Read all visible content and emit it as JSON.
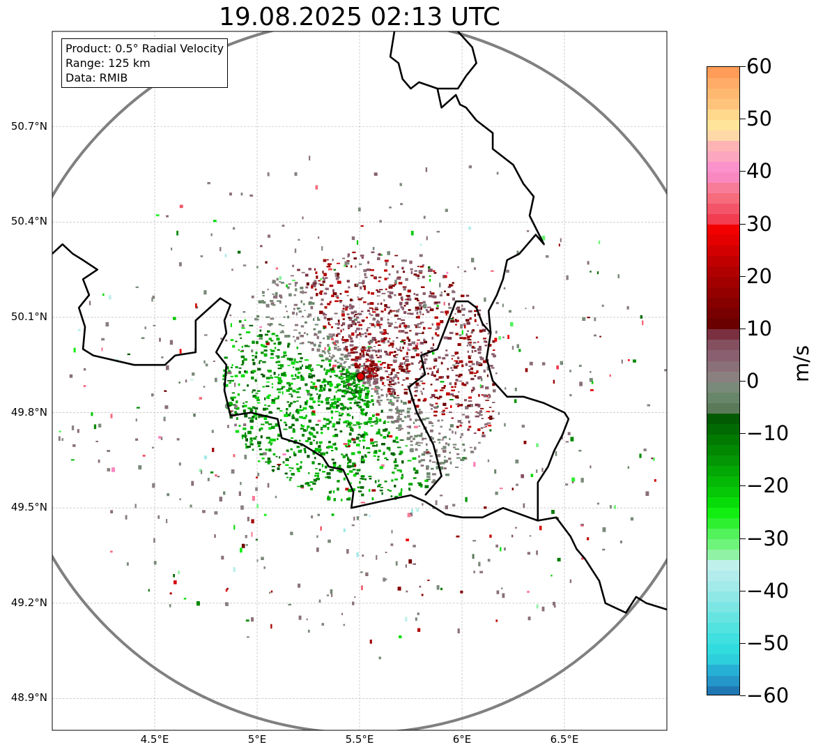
{
  "title": "19.08.2025 02:13 UTC",
  "info_box": {
    "product": "Product: 0.5° Radial Velocity",
    "range": "Range: 125 km",
    "data": "Data: RMIB"
  },
  "chart_data": {
    "type": "heatmap",
    "title": "19.08.2025 02:13 UTC",
    "xlabel": "",
    "ylabel": "",
    "x_ticks": [
      "4.5°E",
      "5°E",
      "5.5°E",
      "6°E",
      "6.5°E"
    ],
    "x_tick_values": [
      4.5,
      5.0,
      5.5,
      6.0,
      6.5
    ],
    "y_ticks": [
      "50.7°N",
      "50.4°N",
      "50.1°N",
      "49.8°N",
      "49.5°N",
      "49.2°N",
      "48.9°N"
    ],
    "y_tick_values": [
      50.7,
      50.4,
      50.1,
      49.8,
      49.5,
      49.2,
      48.9
    ],
    "xlim": [
      4.0,
      7.0
    ],
    "ylim": [
      48.8,
      51.0
    ],
    "grid": true,
    "radar_site": {
      "lon": 5.505,
      "lat": 49.914
    },
    "range_ring_km": 125,
    "colorbar": {
      "label": "m/s",
      "range": [
        -60,
        60
      ],
      "ticks": [
        60,
        50,
        40,
        30,
        20,
        10,
        0,
        -10,
        -20,
        -30,
        -40,
        -50,
        -60
      ],
      "tick_labels": [
        "60",
        "50",
        "40",
        "30",
        "20",
        "10",
        "0",
        "−10",
        "−20",
        "−30",
        "−40",
        "−50",
        "−60"
      ]
    },
    "colormap": [
      [
        -60,
        "#1f77b4"
      ],
      [
        -58,
        "#2596c8"
      ],
      [
        -56,
        "#27b0d6"
      ],
      [
        -54,
        "#2ecfdc"
      ],
      [
        -52,
        "#30dcdd"
      ],
      [
        -50,
        "#3fe0df"
      ],
      [
        -48,
        "#52e2e0"
      ],
      [
        -46,
        "#66e4e2"
      ],
      [
        -44,
        "#7be6e4"
      ],
      [
        -42,
        "#8fe8e6"
      ],
      [
        -40,
        "#a3eaea"
      ],
      [
        -38,
        "#b2ecec"
      ],
      [
        -36,
        "#c0f0ec"
      ],
      [
        -34,
        "#90f2a4"
      ],
      [
        -32,
        "#6ef47a"
      ],
      [
        -30,
        "#52f25a"
      ],
      [
        -28,
        "#2ef030"
      ],
      [
        -26,
        "#12ee12"
      ],
      [
        -24,
        "#08dc08"
      ],
      [
        -22,
        "#06c806"
      ],
      [
        -20,
        "#05b805"
      ],
      [
        -18,
        "#04a804"
      ],
      [
        -16,
        "#049604"
      ],
      [
        -14,
        "#038803"
      ],
      [
        -12,
        "#027a02"
      ],
      [
        -10,
        "#026a02"
      ],
      [
        -8,
        "#025a02"
      ],
      [
        -6,
        "#5a7a5a"
      ],
      [
        -4,
        "#68866a"
      ],
      [
        -2,
        "#7a8a7a"
      ],
      [
        0,
        "#8a8080"
      ],
      [
        2,
        "#8a7078"
      ],
      [
        4,
        "#8a6070"
      ],
      [
        6,
        "#845060"
      ],
      [
        8,
        "#7a3040"
      ],
      [
        10,
        "#6a0000"
      ],
      [
        12,
        "#780000"
      ],
      [
        14,
        "#860000"
      ],
      [
        16,
        "#940000"
      ],
      [
        18,
        "#a20000"
      ],
      [
        20,
        "#b00000"
      ],
      [
        22,
        "#c00000"
      ],
      [
        24,
        "#d20000"
      ],
      [
        26,
        "#e40000"
      ],
      [
        28,
        "#f20000"
      ],
      [
        30,
        "#f23c50"
      ],
      [
        32,
        "#f45468"
      ],
      [
        34,
        "#f66c7c"
      ],
      [
        36,
        "#f87c98"
      ],
      [
        38,
        "#fa88c0"
      ],
      [
        40,
        "#fc92cc"
      ],
      [
        42,
        "#fda6c0"
      ],
      [
        44,
        "#feb4b4"
      ],
      [
        46,
        "#ffd8a8"
      ],
      [
        48,
        "#ffe49a"
      ],
      [
        50,
        "#ffd88c"
      ],
      [
        52,
        "#ffc47c"
      ],
      [
        54,
        "#ffb870"
      ],
      [
        56,
        "#ffac68"
      ],
      [
        58,
        "#ff9c58"
      ]
    ],
    "country_border": [
      [
        4.0,
        50.3
      ],
      [
        4.05,
        50.33
      ],
      [
        4.1,
        50.3
      ],
      [
        4.15,
        50.28
      ],
      [
        4.22,
        50.25
      ],
      [
        4.15,
        50.22
      ],
      [
        4.18,
        50.17
      ],
      [
        4.13,
        50.13
      ],
      [
        4.16,
        50.07
      ],
      [
        4.15,
        50.0
      ],
      [
        4.2,
        49.98
      ],
      [
        4.4,
        49.95
      ],
      [
        4.55,
        49.95
      ],
      [
        4.6,
        49.98
      ],
      [
        4.7,
        49.99
      ],
      [
        4.7,
        50.09
      ],
      [
        4.82,
        50.16
      ],
      [
        4.87,
        50.14
      ],
      [
        4.84,
        50.09
      ],
      [
        4.85,
        50.05
      ],
      [
        4.8,
        49.99
      ],
      [
        4.85,
        49.95
      ],
      [
        4.84,
        49.87
      ],
      [
        4.87,
        49.79
      ],
      [
        4.97,
        49.8
      ],
      [
        5.1,
        49.78
      ],
      [
        5.12,
        49.72
      ],
      [
        5.22,
        49.7
      ],
      [
        5.32,
        49.66
      ],
      [
        5.35,
        49.63
      ],
      [
        5.42,
        49.62
      ],
      [
        5.47,
        49.55
      ],
      [
        5.46,
        49.5
      ],
      [
        5.6,
        49.52
      ],
      [
        5.75,
        49.54
      ],
      [
        5.82,
        49.52
      ],
      [
        5.87,
        49.5
      ],
      [
        5.92,
        49.48
      ],
      [
        6.0,
        49.47
      ],
      [
        6.1,
        49.47
      ],
      [
        6.2,
        49.5
      ],
      [
        6.37,
        49.46
      ],
      [
        6.46,
        49.47
      ],
      [
        6.53,
        49.41
      ],
      [
        6.56,
        49.37
      ],
      [
        6.6,
        49.34
      ],
      [
        6.67,
        49.27
      ],
      [
        6.7,
        49.2
      ],
      [
        6.8,
        49.17
      ],
      [
        6.85,
        49.22
      ],
      [
        6.9,
        49.2
      ],
      [
        7.0,
        49.18
      ]
    ],
    "country_border_2": [
      [
        5.82,
        49.54
      ],
      [
        5.9,
        49.6
      ],
      [
        5.86,
        49.7
      ],
      [
        5.82,
        49.75
      ],
      [
        5.78,
        49.8
      ],
      [
        5.74,
        49.88
      ],
      [
        5.82,
        49.92
      ],
      [
        5.8,
        49.98
      ],
      [
        5.88,
        50.0
      ],
      [
        5.94,
        50.1
      ],
      [
        5.97,
        50.15
      ],
      [
        6.03,
        50.15
      ],
      [
        6.07,
        50.13
      ],
      [
        6.1,
        50.08
      ],
      [
        6.14,
        50.05
      ],
      [
        6.12,
        49.97
      ],
      [
        6.15,
        49.9
      ],
      [
        6.22,
        49.85
      ],
      [
        6.3,
        49.85
      ],
      [
        6.4,
        49.83
      ],
      [
        6.5,
        49.8
      ],
      [
        6.52,
        49.78
      ],
      [
        6.49,
        49.73
      ],
      [
        6.45,
        49.68
      ],
      [
        6.42,
        49.63
      ],
      [
        6.37,
        49.58
      ],
      [
        6.37,
        49.46
      ]
    ],
    "country_border_3": [
      [
        6.14,
        50.05
      ],
      [
        6.13,
        50.12
      ],
      [
        6.17,
        50.17
      ],
      [
        6.2,
        50.22
      ],
      [
        6.22,
        50.28
      ],
      [
        6.28,
        50.3
      ],
      [
        6.36,
        50.36
      ],
      [
        6.4,
        50.33
      ],
      [
        6.33,
        50.42
      ],
      [
        6.35,
        50.48
      ],
      [
        6.3,
        50.52
      ],
      [
        6.25,
        50.58
      ],
      [
        6.15,
        50.63
      ],
      [
        6.15,
        50.68
      ],
      [
        6.07,
        50.72
      ],
      [
        6.02,
        50.76
      ],
      [
        5.99,
        50.77
      ],
      [
        5.97,
        50.8
      ],
      [
        5.9,
        50.76
      ],
      [
        5.88,
        50.82
      ],
      [
        5.79,
        50.84
      ],
      [
        5.75,
        50.82
      ],
      [
        5.71,
        50.85
      ],
      [
        5.69,
        50.9
      ],
      [
        5.65,
        50.92
      ],
      [
        5.67,
        51.0
      ]
    ],
    "country_border_4": [
      [
        5.98,
        51.0
      ],
      [
        6.05,
        50.95
      ],
      [
        6.07,
        50.9
      ],
      [
        6.02,
        50.86
      ],
      [
        5.98,
        50.82
      ],
      [
        5.88,
        50.82
      ]
    ]
  }
}
